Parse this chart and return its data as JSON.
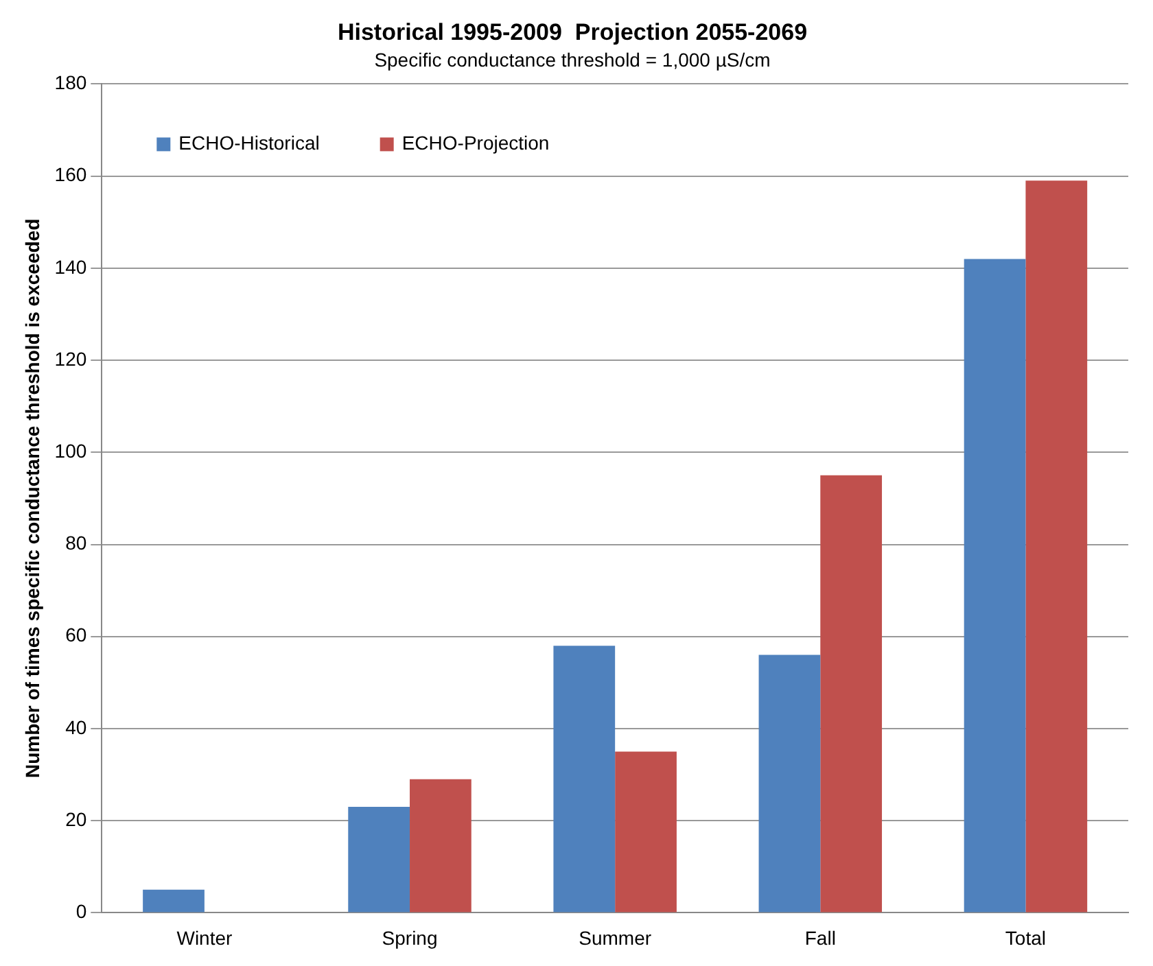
{
  "chart_data": {
    "type": "bar",
    "title": "Historical 1995-2009  Projection 2055-2069",
    "subtitle": "Specific conductance threshold = 1,000 µS/cm",
    "ylabel": "Number of times specific conductance threshold is exceeded",
    "categories": [
      "Winter",
      "Spring",
      "Summer",
      "Fall",
      "Total"
    ],
    "series": [
      {
        "name": "ECHO-Historical",
        "color": "#4f81bd",
        "values": [
          5,
          23,
          58,
          56,
          142
        ]
      },
      {
        "name": "ECHO-Projection",
        "color": "#c0504d",
        "values": [
          0,
          29,
          35,
          95,
          159
        ]
      }
    ],
    "ylim": [
      0,
      180
    ],
    "yticks": [
      0,
      20,
      40,
      60,
      80,
      100,
      120,
      140,
      160,
      180
    ],
    "grid": "y",
    "legend": "top left"
  }
}
